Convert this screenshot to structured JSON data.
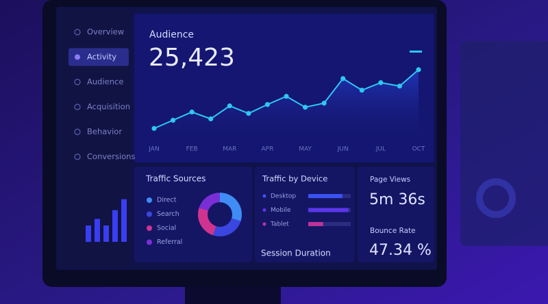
{
  "sidebar": {
    "items": [
      "Overview",
      "Activity",
      "Audience",
      "Acquisition",
      "Behavior",
      "Conversions"
    ],
    "active": 1
  },
  "audience": {
    "title": "Audience",
    "value": "25,423",
    "chart": {
      "type": "line",
      "categories": [
        "JAN",
        null,
        "FEB",
        null,
        "MAR",
        null,
        "APR",
        null,
        "MAY",
        null,
        "JUN",
        null,
        "JUL",
        null,
        "OCT"
      ],
      "values": [
        12,
        24,
        36,
        26,
        45,
        34,
        47,
        59,
        43,
        49,
        85,
        68,
        79,
        74,
        98
      ],
      "ylim": [
        0,
        110
      ],
      "color": "#2ec8f2"
    }
  },
  "mini_chart": {
    "type": "bar",
    "values": [
      30,
      42,
      30,
      58,
      78
    ],
    "ylim": [
      0,
      100
    ],
    "color": "#3a3ef2"
  },
  "traffic_sources": {
    "title": "Traffic Sources",
    "type": "pie",
    "labels": [
      "Direct",
      "Search",
      "Social",
      "Referral"
    ],
    "values": [
      30,
      25,
      25,
      20
    ],
    "colors": [
      "#3f8cf5",
      "#3b46e0",
      "#d0338f",
      "#7a2fd6"
    ]
  },
  "traffic_by_device": {
    "title": "Traffic by Device",
    "type": "bar",
    "labels": [
      "Desktop",
      "Mobile",
      "Tablet"
    ],
    "values": [
      80,
      95,
      35
    ],
    "xlim": [
      0,
      100
    ],
    "colors": [
      "#3b52f0",
      "#5a36e8",
      "#c0329a"
    ]
  },
  "session_duration": {
    "title": "Session Duration"
  },
  "page_views": {
    "title": "Page Views",
    "value": "5m 36s"
  },
  "bounce_rate": {
    "title": "Bounce Rate",
    "value": "47.34 %"
  }
}
